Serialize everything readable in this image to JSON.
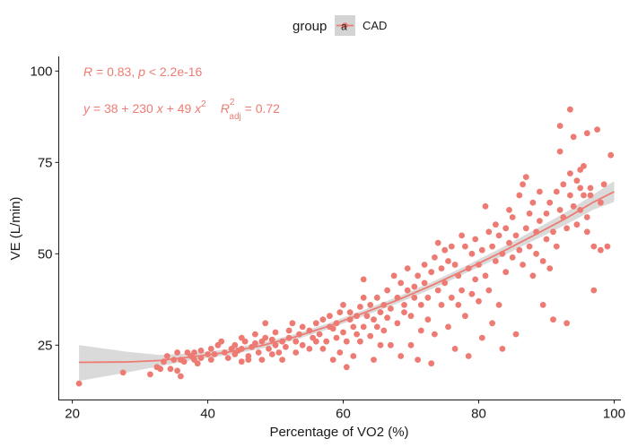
{
  "chart_data": {
    "type": "scatter",
    "title": "",
    "xlabel": "Percentage of VO2 (%)",
    "ylabel": "VE (L/min)",
    "xlim": [
      18,
      101
    ],
    "ylim": [
      10,
      104
    ],
    "x_ticks": [
      20,
      40,
      60,
      80,
      100
    ],
    "y_ticks": [
      25,
      50,
      75,
      100
    ],
    "grid": false,
    "legend": {
      "title": "group",
      "position": "top",
      "entries": [
        "CAD"
      ],
      "key_letter": "a"
    },
    "colors": {
      "series": "#ee7b73",
      "ribbon": "#d4d4d4"
    },
    "annotations": {
      "line1": {
        "r_text": "R",
        "r_value": " = 0.83, ",
        "p_text": "p",
        "p_value": " < 2.2e-16"
      },
      "line2": {
        "y": "y",
        "eq_mid": " = 38 + 230 ",
        "x1": "x",
        "eq_plus": " + 49 ",
        "x2": "x",
        "sq": "2",
        "r": "R",
        "r_sup": "2",
        "r_sub": "adj",
        "r_value": " = 0.72"
      }
    },
    "series": [
      {
        "name": "CAD",
        "fit": {
          "type": "quadratic-smooth",
          "x_range": [
            21,
            100
          ]
        },
        "fit_curve": [
          [
            21,
            20.3
          ],
          [
            28,
            20.4
          ],
          [
            33,
            20.8
          ],
          [
            38,
            21.9
          ],
          [
            43,
            23.1
          ],
          [
            48,
            24.9
          ],
          [
            53,
            27.3
          ],
          [
            58,
            30.3
          ],
          [
            63,
            33.8
          ],
          [
            68,
            37.3
          ],
          [
            73,
            41.3
          ],
          [
            78,
            45.6
          ],
          [
            83,
            50.1
          ],
          [
            88,
            54.9
          ],
          [
            93,
            59.8
          ],
          [
            97,
            64.2
          ],
          [
            100,
            67.0
          ]
        ],
        "ribbon_upper": [
          [
            21,
            25.0
          ],
          [
            28,
            23.2
          ],
          [
            33,
            22.3
          ],
          [
            38,
            22.8
          ],
          [
            43,
            23.9
          ],
          [
            48,
            25.7
          ],
          [
            53,
            28.1
          ],
          [
            58,
            31.1
          ],
          [
            63,
            34.6
          ],
          [
            68,
            38.2
          ],
          [
            73,
            42.2
          ],
          [
            78,
            46.6
          ],
          [
            83,
            51.3
          ],
          [
            88,
            56.3
          ],
          [
            93,
            61.5
          ],
          [
            97,
            66.3
          ],
          [
            100,
            69.9
          ]
        ],
        "ribbon_lower": [
          [
            21,
            15.2
          ],
          [
            28,
            17.5
          ],
          [
            33,
            19.3
          ],
          [
            38,
            21.0
          ],
          [
            43,
            22.3
          ],
          [
            48,
            24.1
          ],
          [
            53,
            26.5
          ],
          [
            58,
            29.5
          ],
          [
            63,
            33.0
          ],
          [
            68,
            36.4
          ],
          [
            73,
            40.3
          ],
          [
            78,
            44.6
          ],
          [
            83,
            48.9
          ],
          [
            88,
            53.5
          ],
          [
            93,
            58.1
          ],
          [
            97,
            62.1
          ],
          [
            100,
            64.2
          ]
        ],
        "points": [
          [
            21,
            14.5
          ],
          [
            27.5,
            17.5
          ],
          [
            31.5,
            17
          ],
          [
            32.5,
            19
          ],
          [
            33,
            18.5
          ],
          [
            33.5,
            20.5
          ],
          [
            34,
            22
          ],
          [
            34.5,
            18.5
          ],
          [
            35,
            21
          ],
          [
            35.5,
            18
          ],
          [
            35.5,
            23
          ],
          [
            36,
            21
          ],
          [
            36,
            16.5
          ],
          [
            36.5,
            20.5
          ],
          [
            37,
            23
          ],
          [
            37.5,
            22
          ],
          [
            38,
            21
          ],
          [
            38,
            23
          ],
          [
            38.5,
            20
          ],
          [
            39,
            21.5
          ],
          [
            39,
            23.5
          ],
          [
            40,
            22.5
          ],
          [
            40.5,
            21
          ],
          [
            40.5,
            24
          ],
          [
            41,
            22.5
          ],
          [
            41.5,
            25
          ],
          [
            42,
            26
          ],
          [
            42.5,
            23
          ],
          [
            43,
            21.5
          ],
          [
            43.5,
            24
          ],
          [
            44,
            22.5
          ],
          [
            44,
            25
          ],
          [
            44.5,
            23.5
          ],
          [
            45,
            20.5
          ],
          [
            45,
            24
          ],
          [
            45,
            27
          ],
          [
            45.5,
            26
          ],
          [
            46,
            22
          ],
          [
            46.5,
            24.5
          ],
          [
            46,
            21
          ],
          [
            47,
            25.5
          ],
          [
            47,
            28
          ],
          [
            47.5,
            23
          ],
          [
            48,
            26
          ],
          [
            48,
            21
          ],
          [
            48.5,
            31
          ],
          [
            48.5,
            27
          ],
          [
            49,
            24
          ],
          [
            49.5,
            26.5
          ],
          [
            49.5,
            22.5
          ],
          [
            50,
            25
          ],
          [
            50,
            28.5
          ],
          [
            50.5,
            23
          ],
          [
            51,
            26
          ],
          [
            51,
            21
          ],
          [
            51.5,
            24.5
          ],
          [
            52,
            27
          ],
          [
            52,
            29
          ],
          [
            52.5,
            31
          ],
          [
            53,
            26
          ],
          [
            53,
            23
          ],
          [
            53.5,
            28
          ],
          [
            54,
            30
          ],
          [
            54,
            25
          ],
          [
            55,
            24
          ],
          [
            55,
            29
          ],
          [
            55.5,
            27
          ],
          [
            56,
            31
          ],
          [
            56,
            26
          ],
          [
            56.5,
            28
          ],
          [
            57,
            24
          ],
          [
            57,
            32
          ],
          [
            57.5,
            26
          ],
          [
            58,
            30
          ],
          [
            58,
            33
          ],
          [
            58.5,
            29.5
          ],
          [
            58.5,
            21
          ],
          [
            59,
            27
          ],
          [
            59,
            31
          ],
          [
            59.5,
            34
          ],
          [
            59.5,
            23
          ],
          [
            60,
            28.5
          ],
          [
            60,
            36
          ],
          [
            60.5,
            26
          ],
          [
            60.5,
            19
          ],
          [
            61,
            32
          ],
          [
            61,
            34
          ],
          [
            61.5,
            30
          ],
          [
            61.5,
            22
          ],
          [
            62,
            28
          ],
          [
            62,
            33
          ],
          [
            62.5,
            35.5
          ],
          [
            62.5,
            26
          ],
          [
            63,
            38
          ],
          [
            63,
            43
          ],
          [
            63,
            30
          ],
          [
            63.5,
            33
          ],
          [
            64,
            27.5
          ],
          [
            64,
            36
          ],
          [
            64.5,
            32
          ],
          [
            64.5,
            21
          ],
          [
            65,
            30
          ],
          [
            65,
            38
          ],
          [
            65.5,
            34
          ],
          [
            65.5,
            25
          ],
          [
            66,
            36
          ],
          [
            66,
            29
          ],
          [
            66.5,
            40
          ],
          [
            66.5,
            32.5
          ],
          [
            67,
            35
          ],
          [
            67,
            25
          ],
          [
            67.5,
            44
          ],
          [
            68,
            31
          ],
          [
            68,
            38
          ],
          [
            68.5,
            42
          ],
          [
            68.5,
            22
          ],
          [
            69,
            36
          ],
          [
            69,
            34
          ],
          [
            69.5,
            46
          ],
          [
            69.5,
            40
          ],
          [
            70,
            33
          ],
          [
            70,
            25
          ],
          [
            70.5,
            41
          ],
          [
            70.5,
            38
          ],
          [
            71,
            21
          ],
          [
            71,
            44
          ],
          [
            71.5,
            36
          ],
          [
            71.5,
            29
          ],
          [
            72,
            47
          ],
          [
            72,
            42
          ],
          [
            72.5,
            38
          ],
          [
            72.5,
            32
          ],
          [
            73,
            45
          ],
          [
            73,
            20
          ],
          [
            73.5,
            49
          ],
          [
            73.5,
            28
          ],
          [
            74,
            40
          ],
          [
            74,
            53
          ],
          [
            74.5,
            36
          ],
          [
            74.5,
            46
          ],
          [
            75,
            51
          ],
          [
            75,
            42
          ],
          [
            75.5,
            30
          ],
          [
            75.5,
            48
          ],
          [
            76,
            38
          ],
          [
            76,
            52
          ],
          [
            76.5,
            47
          ],
          [
            76.5,
            24
          ],
          [
            77,
            44
          ],
          [
            77,
            36
          ],
          [
            77.5,
            55
          ],
          [
            77.5,
            40
          ],
          [
            78,
            52
          ],
          [
            78,
            33
          ],
          [
            78.5,
            46
          ],
          [
            78.5,
            22
          ],
          [
            79,
            50
          ],
          [
            79,
            39
          ],
          [
            79.5,
            54
          ],
          [
            79.5,
            43
          ],
          [
            80,
            37
          ],
          [
            80,
            47
          ],
          [
            80.5,
            51
          ],
          [
            80.5,
            27
          ],
          [
            81,
            63
          ],
          [
            81,
            44
          ],
          [
            81.5,
            56
          ],
          [
            81.5,
            40
          ],
          [
            82,
            52
          ],
          [
            82,
            31
          ],
          [
            82.5,
            48
          ],
          [
            82.5,
            58
          ],
          [
            83,
            55
          ],
          [
            83,
            36
          ],
          [
            83.5,
            50
          ],
          [
            83.5,
            24
          ],
          [
            84,
            57
          ],
          [
            84,
            45
          ],
          [
            84.5,
            53
          ],
          [
            84.5,
            62
          ],
          [
            85,
            49
          ],
          [
            85,
            60
          ],
          [
            85.5,
            55
          ],
          [
            85.5,
            28
          ],
          [
            86,
            66
          ],
          [
            86,
            51
          ],
          [
            86.5,
            69
          ],
          [
            86.5,
            47
          ],
          [
            87,
            57
          ],
          [
            87,
            71
          ],
          [
            87.5,
            52
          ],
          [
            87.5,
            61
          ],
          [
            88,
            44
          ],
          [
            88,
            64
          ],
          [
            88.5,
            56
          ],
          [
            88.5,
            50
          ],
          [
            89,
            59
          ],
          [
            89,
            67
          ],
          [
            89.5,
            48
          ],
          [
            89.5,
            36
          ],
          [
            90,
            61
          ],
          [
            90,
            54
          ],
          [
            90.5,
            64
          ],
          [
            90.5,
            46
          ],
          [
            91,
            56
          ],
          [
            91,
            32
          ],
          [
            91.5,
            67
          ],
          [
            91.5,
            52
          ],
          [
            92,
            62
          ],
          [
            92,
            78
          ],
          [
            92.5,
            60
          ],
          [
            92.5,
            69
          ],
          [
            93,
            57
          ],
          [
            93,
            31
          ],
          [
            93.5,
            72
          ],
          [
            93.5,
            66
          ],
          [
            94,
            63
          ],
          [
            94,
            82
          ],
          [
            94.5,
            70
          ],
          [
            94.5,
            58
          ],
          [
            95,
            68
          ],
          [
            95,
            62
          ],
          [
            95.5,
            74
          ],
          [
            95.5,
            66
          ],
          [
            96,
            83
          ],
          [
            96,
            60
          ],
          [
            96.5,
            66
          ],
          [
            97,
            52
          ],
          [
            97,
            40
          ],
          [
            97.5,
            84
          ],
          [
            98,
            64
          ],
          [
            98,
            51
          ],
          [
            98.5,
            69
          ],
          [
            99,
            52
          ],
          [
            99.5,
            77
          ],
          [
            93.5,
            89.5
          ],
          [
            92,
            85
          ],
          [
            95,
            73
          ],
          [
            96,
            56
          ],
          [
            96.5,
            68
          ]
        ]
      }
    ]
  }
}
